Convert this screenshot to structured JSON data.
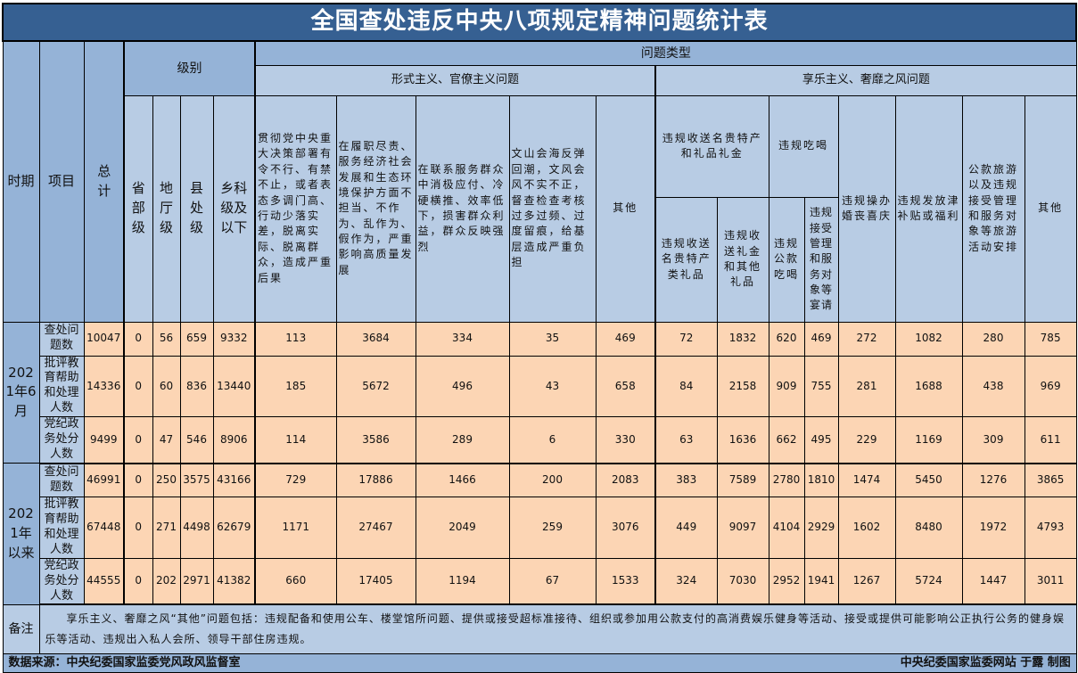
{
  "title": "全国查处违反中央八项规定精神问题统计表",
  "headers": {
    "period": "时期",
    "item": "项目",
    "total": "总计",
    "level": "级别",
    "levels": [
      "省部级",
      "地厅级",
      "县处级",
      "乡科级及以下"
    ],
    "problem_type": "问题类型",
    "formalism": "形式主义、官僚主义问题",
    "formalism_cols": [
      "贯彻党中央重大决策部署有令不行、有禁不止，或者表态多调门高、行动少落实差，脱离实际、脱离群众，造成严重后果",
      "在履职尽责、服务经济社会发展和生态环境保护方面不担当、不作为、乱作为、假作为，严重影响高质量发展",
      "在联系服务群众中消极应付、冷硬横推、效率低下，损害群众利益，群众反映强烈",
      "文山会海反弹回潮，文风会风不实不正，督查检查考核过多过频、过度留痕，给基层造成严重负担",
      "其他"
    ],
    "hedonism": "享乐主义、奢靡之风问题",
    "gifts_group": "违规收送名贵特产和礼品礼金",
    "gifts_cols": [
      "违规收送名贵特产类礼品",
      "违规收送礼金和其他礼品"
    ],
    "dining_group": "违规吃喝",
    "dining_cols": [
      "违规公款吃喝",
      "违规接受管理和服务对象等宴请"
    ],
    "hedonism_cols": [
      "违规操办婚丧喜庆",
      "违规发放津补贴或福利",
      "公款旅游以及违规接受管理和服务对象等旅游活动安排",
      "其他"
    ]
  },
  "periods": [
    {
      "label": "2021年6月",
      "rows": [
        {
          "item": "查处问题数",
          "values": [
            10047,
            0,
            56,
            659,
            9332,
            113,
            3684,
            334,
            35,
            469,
            72,
            1832,
            620,
            469,
            272,
            1082,
            280,
            785
          ]
        },
        {
          "item": "批评教育帮助和处理人数",
          "values": [
            14336,
            0,
            60,
            836,
            13440,
            185,
            5672,
            496,
            43,
            658,
            84,
            2158,
            909,
            755,
            281,
            1688,
            438,
            969
          ]
        },
        {
          "item": "党纪政务处分人数",
          "values": [
            9499,
            0,
            47,
            546,
            8906,
            114,
            3586,
            289,
            6,
            330,
            63,
            1636,
            662,
            495,
            229,
            1169,
            309,
            611
          ]
        }
      ]
    },
    {
      "label": "2021年以来",
      "rows": [
        {
          "item": "查处问题数",
          "values": [
            46991,
            0,
            250,
            3575,
            43166,
            729,
            17886,
            1466,
            200,
            2083,
            383,
            7589,
            2780,
            1810,
            1474,
            5450,
            1276,
            3865
          ]
        },
        {
          "item": "批评教育帮助和处理人数",
          "values": [
            67448,
            0,
            271,
            4498,
            62679,
            1171,
            27467,
            2049,
            259,
            3076,
            449,
            9097,
            4104,
            2929,
            1602,
            8480,
            1972,
            4793
          ]
        },
        {
          "item": "党纪政务处分人数",
          "values": [
            44555,
            0,
            202,
            2971,
            41382,
            660,
            17405,
            1194,
            67,
            1533,
            324,
            7030,
            2952,
            1941,
            1267,
            5724,
            1447,
            3011
          ]
        }
      ]
    }
  ],
  "note": {
    "label": "备注",
    "text": "享乐主义、奢靡之风“其他”问题包括：违规配备和使用公车、楼堂馆所问题、提供或接受超标准接待、组织或参加用公款支付的高消费娱乐健身等活动、接受或提供可能影响公正执行公务的健身娱乐等活动、违规出入私人会所、领导干部住房违规。"
  },
  "footer": {
    "source": "数据来源：中央纪委国家监委党风政风监督室",
    "credit": "中央纪委国家监委网站 于露 制图"
  },
  "colors": {
    "title_bg": "#366092",
    "header_dark": "#95b3d7",
    "header_light": "#b8cce4",
    "data_bg": "#fcd5b4"
  }
}
